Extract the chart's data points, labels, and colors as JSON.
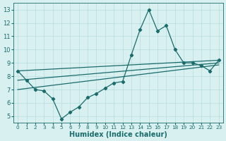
{
  "xlabel": "Humidex (Indice chaleur)",
  "ylabel": "",
  "x_values": [
    0,
    1,
    2,
    3,
    4,
    5,
    6,
    7,
    8,
    9,
    10,
    11,
    12,
    13,
    14,
    15,
    16,
    17,
    18,
    19,
    20,
    21,
    22,
    23
  ],
  "y_main": [
    8.4,
    7.7,
    7.0,
    6.9,
    6.3,
    4.8,
    5.3,
    5.7,
    6.4,
    6.7,
    7.1,
    7.5,
    7.6,
    9.6,
    11.5,
    13.0,
    11.4,
    11.8,
    10.0,
    9.0,
    9.0,
    8.8,
    8.4,
    9.2
  ],
  "trend_lines": [
    {
      "x0": 0,
      "y0": 8.4,
      "x1": 23,
      "y1": 9.2
    },
    {
      "x0": 0,
      "y0": 7.7,
      "x1": 23,
      "y1": 9.0
    },
    {
      "x0": 0,
      "y0": 7.0,
      "x1": 23,
      "y1": 8.85
    }
  ],
  "line_color": "#1a6b6b",
  "bg_color": "#d8f0f0",
  "grid_color": "#b8dcdc",
  "text_color": "#1a6b6b",
  "ylim": [
    4.5,
    13.5
  ],
  "yticks": [
    5,
    6,
    7,
    8,
    9,
    10,
    11,
    12,
    13
  ],
  "xticks": [
    0,
    1,
    2,
    3,
    4,
    5,
    6,
    7,
    8,
    9,
    10,
    11,
    12,
    13,
    14,
    15,
    16,
    17,
    18,
    19,
    20,
    21,
    22,
    23
  ],
  "xlim": [
    -0.5,
    23.5
  ]
}
